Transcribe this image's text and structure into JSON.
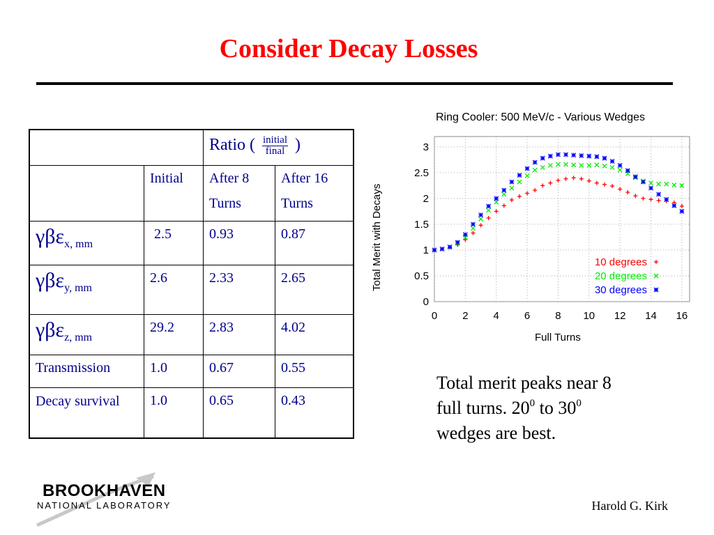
{
  "slide": {
    "title": "Consider Decay Losses",
    "caption": {
      "line1": "Total merit peaks near 8",
      "line2_a": "full turns.  20",
      "line2_sup1": "0",
      "line2_b": " to 30",
      "line2_sup2": "0",
      "line3": "wedges are best."
    },
    "author": "Harold G. Kirk",
    "logo": {
      "line1": "BROOKHAVEN",
      "line2": "NATIONAL LABORATORY"
    }
  },
  "table": {
    "ratio_label_pre": "Ratio (",
    "ratio_numerator": "initial",
    "ratio_denominator": "final",
    "ratio_label_post": ")",
    "headers": [
      "Initial",
      "After 8 Turns",
      "After 16 Turns"
    ],
    "rows": [
      {
        "symbol": "γβε",
        "sub": "x, mm",
        "values": [
          "2.5",
          "0.93",
          "0.87"
        ]
      },
      {
        "symbol": "γβε",
        "sub": "y, mm",
        "values": [
          "2.6",
          "2.33",
          "2.65"
        ]
      },
      {
        "symbol": "γβε",
        "sub": "z, mm",
        "values": [
          "29.2",
          "2.83",
          "4.02"
        ]
      },
      {
        "label": "Transmission",
        "values": [
          "1.0",
          "0.67",
          "0.55"
        ]
      },
      {
        "label": "Decay survival",
        "values": [
          "1.0",
          "0.65",
          "0.43"
        ]
      }
    ]
  },
  "chart_data": {
    "type": "scatter",
    "title": "Ring Cooler: 500 MeV/c - Various Wedges",
    "xlabel": "Full Turns",
    "ylabel": "Total Merit with Decays",
    "xlim": [
      0,
      16.5
    ],
    "ylim": [
      0,
      3.2
    ],
    "xticks": [
      0,
      2,
      4,
      6,
      8,
      10,
      12,
      14,
      16
    ],
    "yticks": [
      0,
      0.5,
      1,
      1.5,
      2,
      2.5,
      3
    ],
    "ytick_labels": [
      "0",
      "0.5",
      "1",
      "1.5",
      "2",
      "2.5",
      "3"
    ],
    "legend_position": "bottom-right",
    "series": [
      {
        "name": "10 degrees",
        "marker": "+",
        "color": "#ff0000",
        "x": [
          0,
          0.5,
          1,
          1.5,
          2,
          2.5,
          3,
          3.5,
          4,
          4.5,
          5,
          5.5,
          6,
          6.5,
          7,
          7.5,
          8,
          8.5,
          9,
          9.5,
          10,
          10.5,
          11,
          11.5,
          12,
          12.5,
          13,
          13.5,
          14,
          14.5,
          15,
          15.5,
          16
        ],
        "y": [
          1.0,
          1.02,
          1.05,
          1.1,
          1.2,
          1.33,
          1.48,
          1.62,
          1.75,
          1.86,
          1.97,
          2.04,
          2.1,
          2.16,
          2.25,
          2.3,
          2.35,
          2.38,
          2.4,
          2.38,
          2.34,
          2.3,
          2.27,
          2.24,
          2.18,
          2.12,
          2.05,
          2.0,
          1.98,
          1.96,
          1.95,
          1.92,
          1.85
        ]
      },
      {
        "name": "20 degrees",
        "marker": "x",
        "color": "#00ee00",
        "x": [
          0,
          0.5,
          1,
          1.5,
          2,
          2.5,
          3,
          3.5,
          4,
          4.5,
          5,
          5.5,
          6,
          6.5,
          7,
          7.5,
          8,
          8.5,
          9,
          9.5,
          10,
          10.5,
          11,
          11.5,
          12,
          12.5,
          13,
          13.5,
          14,
          14.5,
          15,
          15.5,
          16
        ],
        "y": [
          1.0,
          1.02,
          1.06,
          1.13,
          1.25,
          1.42,
          1.6,
          1.77,
          1.93,
          2.08,
          2.2,
          2.32,
          2.44,
          2.55,
          2.6,
          2.64,
          2.66,
          2.66,
          2.65,
          2.64,
          2.64,
          2.65,
          2.63,
          2.6,
          2.55,
          2.48,
          2.4,
          2.34,
          2.3,
          2.28,
          2.28,
          2.26,
          2.25
        ]
      },
      {
        "name": "30 degrees",
        "marker": "*",
        "color": "#0000ff",
        "x": [
          0,
          0.5,
          1,
          1.5,
          2,
          2.5,
          3,
          3.5,
          4,
          4.5,
          5,
          5.5,
          6,
          6.5,
          7,
          7.5,
          8,
          8.5,
          9,
          9.5,
          10,
          10.5,
          11,
          11.5,
          12,
          12.5,
          13,
          13.5,
          14,
          14.5,
          15,
          15.5,
          16
        ],
        "y": [
          1.0,
          1.02,
          1.06,
          1.15,
          1.3,
          1.5,
          1.68,
          1.85,
          2.0,
          2.16,
          2.32,
          2.45,
          2.58,
          2.7,
          2.78,
          2.82,
          2.85,
          2.85,
          2.84,
          2.83,
          2.82,
          2.81,
          2.78,
          2.72,
          2.64,
          2.54,
          2.42,
          2.32,
          2.2,
          2.08,
          1.98,
          1.86,
          1.75
        ]
      }
    ]
  }
}
